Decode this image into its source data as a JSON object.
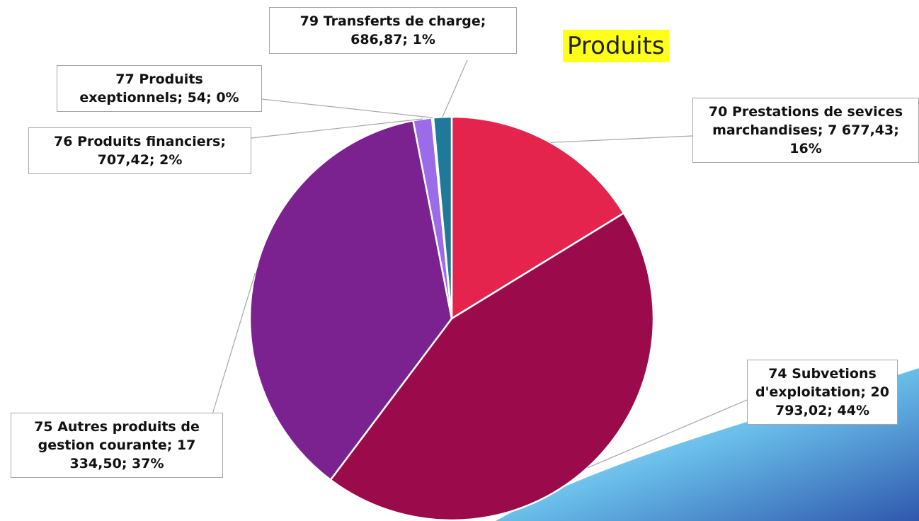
{
  "chart_data": {
    "type": "pie",
    "title": "Produits",
    "categories": [
      "70 Prestations de sevices marchandises",
      "74 Subvetions d'exploitation",
      "75 Autres produits de gestion courante",
      "76 Produits financiers",
      "77 Produits exeptionnels",
      "79 Transferts de charge"
    ],
    "values": [
      7677.43,
      20793.02,
      17334.5,
      707.42,
      54,
      686.87
    ],
    "value_labels": [
      "7 677,43",
      "20 793,02",
      "17 334,50",
      "707,42",
      "54",
      "686,87"
    ],
    "percent_labels": [
      "16%",
      "44%",
      "37%",
      "2%",
      "0%",
      "1%"
    ],
    "label_separator": "; ",
    "colors": [
      "#e5244d",
      "#9b0a4a",
      "#7b2290",
      "#9b6be8",
      "#b7a6e6",
      "#1f7a99"
    ]
  }
}
